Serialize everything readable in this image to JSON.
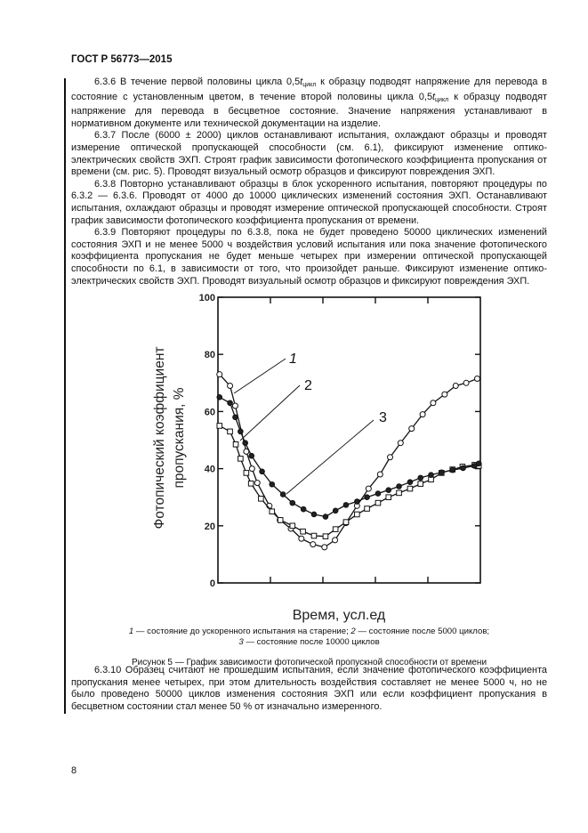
{
  "header": "ГОСТ Р 56773—2015",
  "paragraphs_top": [
    {
      "pre": "6.3.6 В течение первой половины цикла 0,5",
      "t": "t",
      "sub": "цикл",
      "mid": " к образцу подводят напряжение для перевода в состояние с установленным цветом, в течение второй половины цикла 0,5",
      "t2": "t",
      "sub2": "цикл",
      "post": " к образцу подводят напряжение для перевода в бесцветное состояние. Значение напряжения устанавливают в нормативном документе или технической документации на изделие."
    },
    {
      "text": "6.3.7 После (6000 ± 2000) циклов останавливают испытания, охлаждают образцы и проводят измерение оптической пропускающей способности (см. 6.1), фиксируют изменение оптико-электрических свойств ЭХП. Строят график зависимости фотопического коэффициента пропускания от времени (см. рис. 5). Проводят визуальный осмотр образцов и фиксируют повреждения ЭХП."
    },
    {
      "text": "6.3.8 Повторно устанавливают образцы в блок ускоренного испытания, повторяют процедуры по 6.3.2 — 6.3.6. Проводят от 4000 до 10000 циклических изменений состояния ЭХП. Останавливают испытания, охлаждают образцы и проводят измерение оптической пропускающей способности. Строят график зависимости фотопического коэффициента пропускания от времени."
    },
    {
      "text": "6.3.9 Повторяют процедуры по 6.3.8, пока не будет проведено 50000 циклических изменений состояния ЭХП и не менее 5000 ч воздействия условий испытания или пока значение фотопического коэффициента пропускания не будет меньше четырех при измерении оптической пропускающей способности по 6.1, в зависимости от того, что произойдет раньше. Фиксируют изменение оптико-электрических свойств ЭХП. Проводят визуальный осмотр образцов и фиксируют повреждения ЭХП."
    }
  ],
  "chart_data": {
    "type": "line",
    "title": "",
    "xlabel": "Время, усл.ед",
    "ylabel_lines": [
      "Фотопический коэффициент",
      "пропускания, %"
    ],
    "ylim": [
      0,
      100
    ],
    "yticks": [
      "0",
      "20",
      "40",
      "60",
      "80",
      "100"
    ],
    "xlim": [
      0,
      5
    ],
    "xtick_labels_printed": false,
    "grid": false,
    "series": [
      {
        "name": "1",
        "marker": "open-circle",
        "x": [
          0.03,
          0.23,
          0.33,
          0.54,
          0.65,
          0.75,
          0.98,
          1.18,
          1.39,
          1.59,
          1.81,
          2.03,
          2.23,
          2.44,
          2.65,
          2.87,
          3.09,
          3.28,
          3.48,
          3.69,
          3.9,
          4.1,
          4.32,
          4.53,
          4.73,
          4.94
        ],
        "y": [
          73,
          69,
          62,
          46,
          40,
          35,
          27,
          22,
          19,
          15.5,
          13.5,
          12.5,
          15,
          21,
          27,
          33,
          38,
          44,
          49,
          54,
          59,
          63,
          66,
          69,
          70,
          71.5
        ]
      },
      {
        "name": "2",
        "marker": "open-square",
        "x": [
          0.03,
          0.23,
          0.34,
          0.43,
          0.54,
          0.63,
          0.82,
          1.03,
          1.19,
          1.42,
          1.62,
          1.83,
          2.05,
          2.24,
          2.44,
          2.65,
          2.84,
          3.05,
          3.25,
          3.45,
          3.66,
          3.86,
          4.06,
          4.26,
          4.47,
          4.66,
          4.89,
          4.97
        ],
        "y": [
          55,
          53,
          48.5,
          43.5,
          38.5,
          34.8,
          29.5,
          25,
          22,
          20,
          18,
          16.5,
          16.3,
          18.8,
          21.3,
          24,
          26,
          28,
          30,
          31.5,
          33,
          34.7,
          36.2,
          38.5,
          39.7,
          40.7,
          41.3,
          41
        ]
      },
      {
        "name": "3",
        "marker": "filled-circle",
        "x": [
          0.03,
          0.23,
          0.33,
          0.43,
          0.52,
          0.64,
          0.84,
          1.03,
          1.24,
          1.42,
          1.63,
          1.83,
          2.05,
          2.24,
          2.44,
          2.65,
          2.84,
          3.05,
          3.25,
          3.45,
          3.66,
          3.86,
          4.06,
          4.26,
          4.47,
          4.67,
          4.89,
          4.97
        ],
        "y": [
          65,
          63,
          58,
          53,
          49,
          44.5,
          39,
          34.5,
          31,
          28,
          25.8,
          24,
          23.2,
          25.3,
          27.3,
          28.5,
          30,
          31.3,
          32.5,
          33.8,
          35.3,
          36.8,
          37.8,
          38.7,
          39.5,
          40.2,
          41,
          41.8
        ]
      }
    ],
    "curve_labels": [
      "1",
      "2",
      "3"
    ]
  },
  "legend_line1": {
    "n1": "1",
    "t1": " — состояние до ускоренного испытания на старение; ",
    "n2": "2",
    "t2": " — состояние после 5000 циклов;"
  },
  "legend_line2": {
    "n3": "3",
    "t3": " — состояние после 10000 циклов"
  },
  "figure_caption": "Рисунок 5 — График зависимости фотопической пропускной способности от времени",
  "paragraph_bottom": "6.3.10 Образец считают не прошедшим испытания, если значение фотопического коэффициента пропускания менее четырех, при этом длительность воздействия составляет не менее 5000 ч, но не было проведено 50000 циклов изменения состояния ЭХП или если коэффициент пропускания в бесцветном состоянии стал менее 50 % от изначально измеренного.",
  "page_number": "8"
}
